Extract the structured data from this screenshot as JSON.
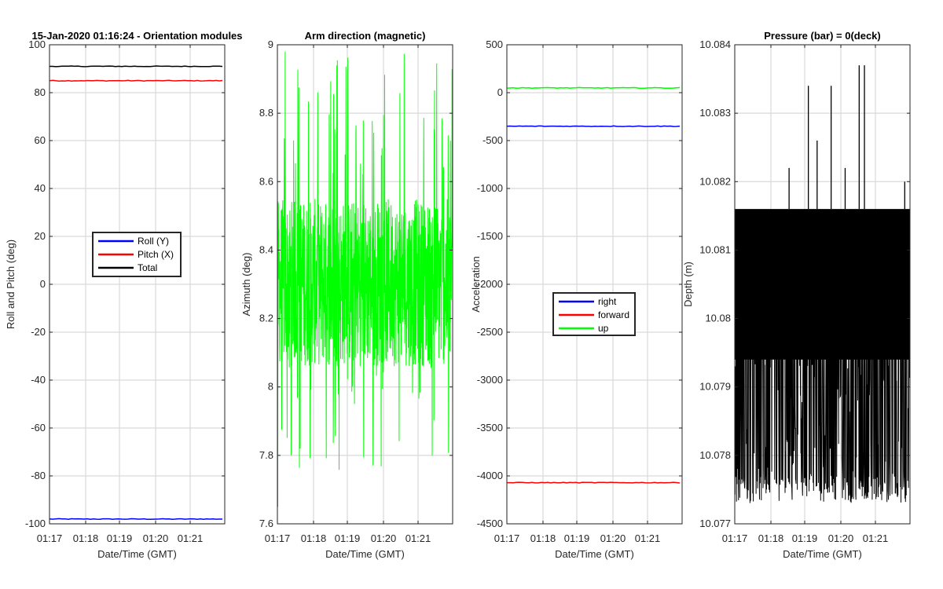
{
  "chart_data": [
    {
      "type": "line",
      "title": "15-Jan-2020 01:16:24 - Orientation modules",
      "xlabel": "Date/Time (GMT)",
      "ylabel": "Roll and Pitch (deg)",
      "xlim": [
        0,
        5
      ],
      "ylim": [
        -100,
        100
      ],
      "yticks": [
        -100,
        -80,
        -60,
        -40,
        -20,
        0,
        20,
        40,
        60,
        80,
        100
      ],
      "ytick_labels": [
        "-100",
        "-80",
        "-60",
        "-40",
        "-20",
        "0",
        "20",
        "40",
        "60",
        "80",
        "100"
      ],
      "xticks": [
        0,
        1,
        2,
        3,
        4
      ],
      "xtick_labels": [
        "01:17",
        "01:18",
        "01:19",
        "01:20",
        "01:21"
      ],
      "grid": true,
      "legend": "center",
      "series": [
        {
          "name": "Roll (Y)",
          "color": "#0000ff",
          "pattern": "const",
          "value": -98
        },
        {
          "name": "Pitch (X)",
          "color": "#ff0000",
          "pattern": "const",
          "value": 85
        },
        {
          "name": "Total",
          "color": "#000000",
          "pattern": "const",
          "value": 91
        }
      ]
    },
    {
      "type": "line",
      "title": "Arm direction (magnetic)",
      "xlabel": "Date/Time (GMT)",
      "ylabel": "Azimuth (deg)",
      "xlim": [
        0,
        5
      ],
      "ylim": [
        7.6,
        9
      ],
      "yticks": [
        7.6,
        7.8,
        8,
        8.2,
        8.4,
        8.6,
        8.8,
        9
      ],
      "ytick_labels": [
        "7.6",
        "7.8",
        "8",
        "8.2",
        "8.4",
        "8.6",
        "8.8",
        "9"
      ],
      "xticks": [
        0,
        1,
        2,
        3,
        4
      ],
      "xtick_labels": [
        "01:17",
        "01:18",
        "01:19",
        "01:20",
        "01:21"
      ],
      "grid": true,
      "series": [
        {
          "name": "Azimuth",
          "color": "#00ff00",
          "pattern": "noise",
          "low": 8.06,
          "high": 8.55,
          "min": 7.65,
          "max": 8.98
        }
      ]
    },
    {
      "type": "line",
      "title": "",
      "xlabel": "Date/Time (GMT)",
      "ylabel": "Acceleration",
      "xlim": [
        0,
        5
      ],
      "ylim": [
        -4500,
        500
      ],
      "yticks": [
        -4500,
        -4000,
        -3500,
        -3000,
        -2500,
        -2000,
        -1500,
        -1000,
        -500,
        0,
        500
      ],
      "ytick_labels": [
        "-4500",
        "-4000",
        "-3500",
        "-3000",
        "-2500",
        "-2000",
        "-1500",
        "-1000",
        "-500",
        "0",
        "500"
      ],
      "xticks": [
        0,
        1,
        2,
        3,
        4
      ],
      "xtick_labels": [
        "01:17",
        "01:18",
        "01:19",
        "01:20",
        "01:21"
      ],
      "grid": true,
      "legend": "center",
      "series": [
        {
          "name": "right",
          "color": "#0000ff",
          "pattern": "const",
          "value": -350
        },
        {
          "name": "forward",
          "color": "#ff0000",
          "pattern": "const",
          "value": -4070
        },
        {
          "name": "up",
          "color": "#00ff00",
          "pattern": "const",
          "value": 50
        }
      ]
    },
    {
      "type": "line",
      "title": "Pressure (bar) = 0(deck)",
      "xlabel": "Date/Time (GMT)",
      "ylabel": "Depth (m)",
      "xlim": [
        0,
        5
      ],
      "ylim": [
        10.077,
        10.084
      ],
      "yticks": [
        10.077,
        10.078,
        10.079,
        10.08,
        10.081,
        10.082,
        10.083,
        10.084
      ],
      "ytick_labels": [
        "10.077",
        "10.078",
        "10.079",
        "10.08",
        "10.081",
        "10.082",
        "10.083",
        "10.084"
      ],
      "xticks": [
        0,
        1,
        2,
        3,
        4
      ],
      "xtick_labels": [
        "01:17",
        "01:18",
        "01:19",
        "01:20",
        "01:21"
      ],
      "grid": true,
      "series": [
        {
          "name": "Depth",
          "color": "#000000",
          "pattern": "band",
          "low": 10.0794,
          "high": 10.0816,
          "min": 10.0773,
          "max": 10.0837
        }
      ]
    }
  ]
}
